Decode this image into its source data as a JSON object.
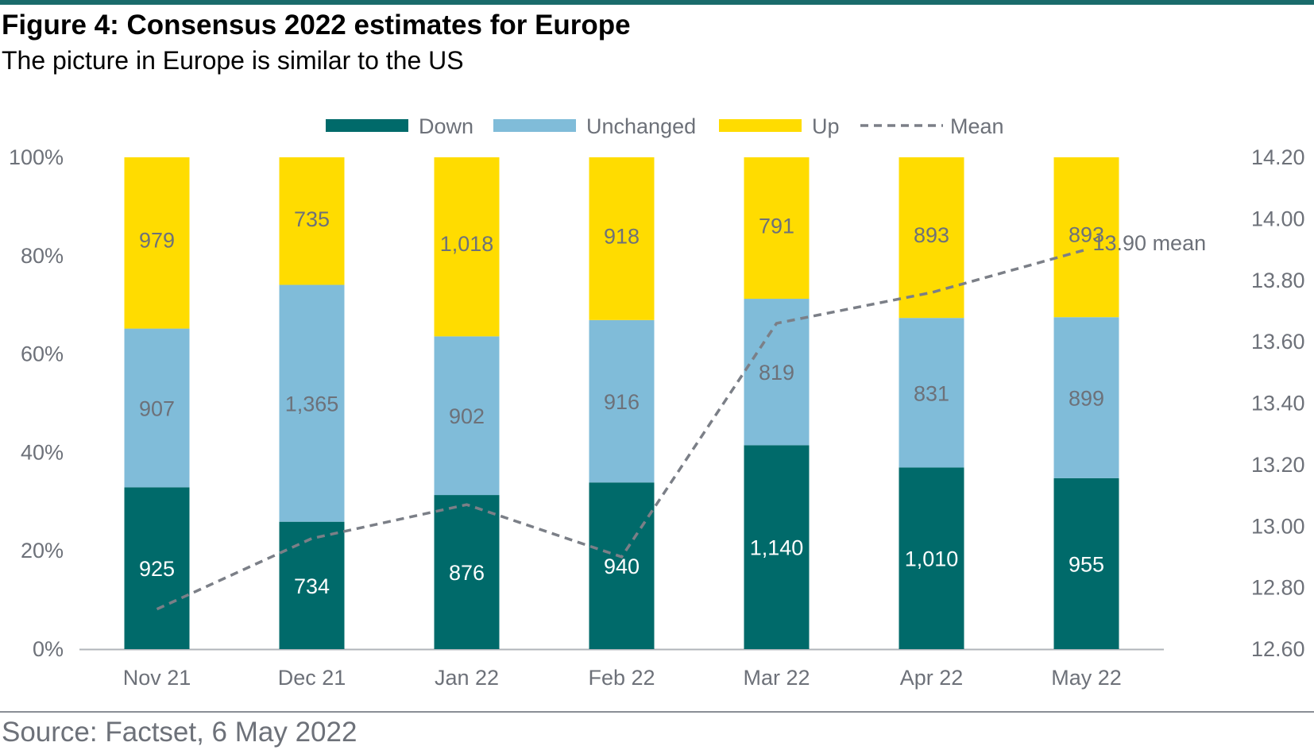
{
  "header": {
    "title": "Figure 4: Consensus 2022 estimates for Europe",
    "subtitle": "The picture in Europe is similar to the US"
  },
  "footer": {
    "source": "Source: Factset, 6 May 2022"
  },
  "colors": {
    "down": "#006a6a",
    "unchanged": "#80bcd9",
    "up": "#ffdc00",
    "mean": "#7b7f87",
    "rule_top": "#1a6b6b",
    "text_gray": "#6d7179"
  },
  "chart_data": {
    "type": "bar",
    "stacked": true,
    "categories": [
      "Nov 21",
      "Dec 21",
      "Jan 22",
      "Feb 22",
      "Mar 22",
      "Apr 22",
      "May 22"
    ],
    "series": [
      {
        "name": "Down",
        "values": [
          925,
          734,
          876,
          940,
          1140,
          1010,
          955
        ],
        "labels": [
          "925",
          "734",
          "876",
          "940",
          "1,140",
          "1,010",
          "955"
        ]
      },
      {
        "name": "Unchanged",
        "values": [
          907,
          1365,
          902,
          916,
          819,
          831,
          899
        ],
        "labels": [
          "907",
          "1,365",
          "902",
          "916",
          "819",
          "831",
          "899"
        ]
      },
      {
        "name": "Up",
        "values": [
          979,
          735,
          1018,
          918,
          791,
          893,
          893
        ],
        "labels": [
          "979",
          "735",
          "1,018",
          "918",
          "791",
          "893",
          "893"
        ]
      }
    ],
    "line": {
      "name": "Mean",
      "values": [
        12.73,
        12.96,
        13.07,
        12.9,
        13.66,
        13.76,
        13.9
      ],
      "style": "dashed"
    },
    "annotation": "13.90 mean",
    "y_left": {
      "ticks": [
        "0%",
        "20%",
        "40%",
        "60%",
        "80%",
        "100%"
      ],
      "range": [
        0,
        100
      ]
    },
    "y_right": {
      "ticks": [
        "12.60",
        "12.80",
        "13.00",
        "13.20",
        "13.40",
        "13.60",
        "13.80",
        "14.00",
        "14.20"
      ],
      "range": [
        12.6,
        14.2
      ]
    },
    "legend_position": "top-center",
    "grid": false
  }
}
